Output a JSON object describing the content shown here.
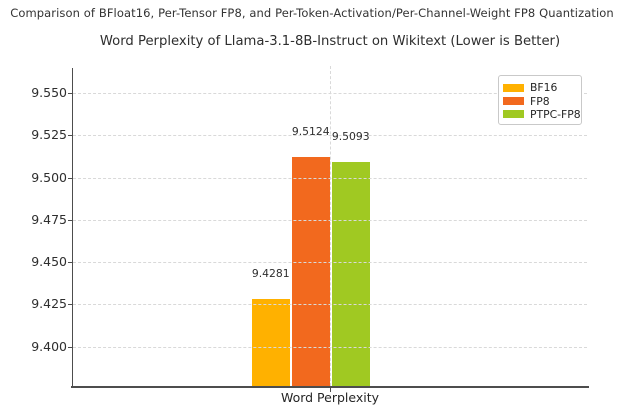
{
  "page": {
    "caption": "Comparison of BFloat16, Per-Tensor FP8, and Per-Token-Activation/Per-Channel-Weight FP8 Quantization"
  },
  "chart_data": {
    "type": "bar",
    "title": "Word Perplexity of Llama-3.1-8B-Instruct on Wikitext (Lower is Better)",
    "xlabel": "Word Perplexity",
    "categories": [
      "Word Perplexity"
    ],
    "series": [
      {
        "name": "BF16",
        "values": [
          9.4281
        ],
        "label": "9.4281",
        "color": "#FFB100"
      },
      {
        "name": "FP8",
        "values": [
          9.5124
        ],
        "label": "9.5124",
        "color": "#F2691E"
      },
      {
        "name": "PTPC-FP8",
        "values": [
          9.5093
        ],
        "label": "9.5093",
        "color": "#A0C922"
      }
    ],
    "yticks": [
      9.4,
      9.425,
      9.45,
      9.475,
      9.5,
      9.525,
      9.55
    ],
    "ylim": [
      9.3768,
      9.566
    ],
    "grid": true,
    "legend_position": "upper right",
    "colors": {
      "spine": "#4d4d4d",
      "gridline": "#d9d9d9",
      "text": "#2e2e2e"
    }
  }
}
